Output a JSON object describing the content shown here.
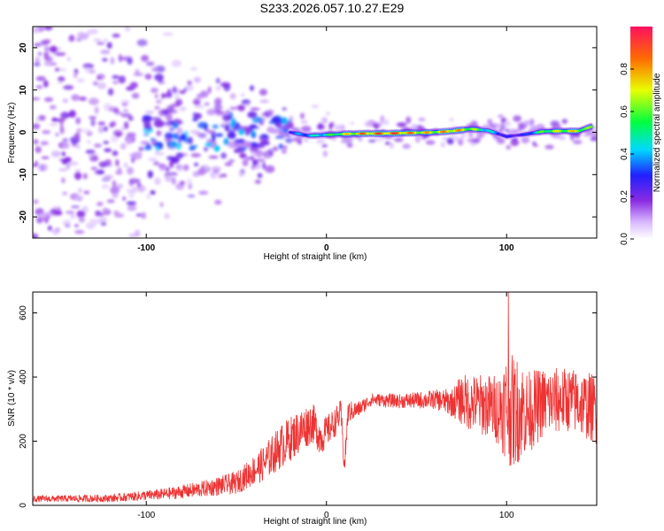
{
  "figure_title": "S233.2026.057.10.27.E29",
  "colors": {
    "snr_line": "#ee3333",
    "axis": "#000000"
  },
  "chart_data": [
    {
      "type": "heatmap",
      "name": "spectrogram",
      "title": "S233.2026.057.10.27.E29",
      "xlabel": "Height of straight line (km)",
      "ylabel": "Frequency (Hz)",
      "xlim": [
        -163,
        150
      ],
      "ylim": [
        -25,
        25
      ],
      "xticks": [
        "-100",
        "0",
        "100"
      ],
      "xtick_values": [
        -100,
        0,
        100
      ],
      "yticks": [
        "-20",
        "-10",
        "0",
        "10",
        "20"
      ],
      "ytick_values": [
        -20,
        -10,
        0,
        10,
        20
      ],
      "colorbar": {
        "label": "Normalized spectral amplitude",
        "range": [
          0,
          1
        ],
        "ticks": [
          "0.0",
          "0.2",
          "0.4",
          "0.6",
          "0.8"
        ],
        "tick_values": [
          0,
          0.2,
          0.4,
          0.6,
          0.8
        ]
      },
      "ridge": [
        {
          "x": -20,
          "f": 0.0,
          "amp": 0.35
        },
        {
          "x": -10,
          "f": -0.8,
          "amp": 0.45
        },
        {
          "x": 0,
          "f": -0.6,
          "amp": 0.55
        },
        {
          "x": 10,
          "f": -0.4,
          "amp": 0.75
        },
        {
          "x": 20,
          "f": -0.3,
          "amp": 0.9
        },
        {
          "x": 30,
          "f": -0.3,
          "amp": 0.95
        },
        {
          "x": 40,
          "f": -0.2,
          "amp": 0.95
        },
        {
          "x": 50,
          "f": -0.1,
          "amp": 0.85
        },
        {
          "x": 60,
          "f": 0.0,
          "amp": 0.8
        },
        {
          "x": 70,
          "f": 0.3,
          "amp": 0.9
        },
        {
          "x": 80,
          "f": 0.8,
          "amp": 0.75
        },
        {
          "x": 90,
          "f": 0.4,
          "amp": 0.5
        },
        {
          "x": 100,
          "f": -1.0,
          "amp": 0.3
        },
        {
          "x": 110,
          "f": -0.5,
          "amp": 0.3
        },
        {
          "x": 120,
          "f": 0.2,
          "amp": 0.65
        },
        {
          "x": 130,
          "f": 0.3,
          "amp": 0.75
        },
        {
          "x": 140,
          "f": 0.3,
          "amp": 0.8
        },
        {
          "x": 148,
          "f": 1.5,
          "amp": 0.6
        }
      ]
    },
    {
      "type": "line",
      "name": "snr",
      "xlabel": "Height of straight line (km)",
      "ylabel": "SNR (10 * v/v)",
      "xlim": [
        -163,
        150
      ],
      "ylim": [
        0,
        665
      ],
      "xticks": [
        "-100",
        "0",
        "100"
      ],
      "xtick_values": [
        -100,
        0,
        100
      ],
      "yticks": [
        "0",
        "200",
        "400",
        "600"
      ],
      "ytick_values": [
        0,
        200,
        400,
        600
      ],
      "series": [
        {
          "name": "SNR",
          "envelope": {
            "x": [
              -163,
              -120,
              -90,
              -70,
              -50,
              -35,
              -25,
              -15,
              -8,
              -3,
              0,
              5,
              8,
              10,
              12,
              18,
              25,
              40,
              60,
              70,
              75,
              80,
              90,
              95,
              100,
              103,
              108,
              112,
              120,
              135,
              150
            ],
            "mean": [
              20,
              22,
              35,
              50,
              70,
              130,
              185,
              230,
              260,
              210,
              230,
              260,
              290,
              120,
              290,
              300,
              330,
              325,
              330,
              320,
              330,
              320,
              310,
              300,
              310,
              290,
              300,
              290,
              320,
              330,
              300
            ],
            "spread": [
              10,
              12,
              18,
              25,
              35,
              55,
              70,
              70,
              65,
              55,
              50,
              45,
              40,
              40,
              35,
              25,
              20,
              22,
              30,
              45,
              80,
              90,
              100,
              110,
              170,
              180,
              160,
              130,
              110,
              100,
              110
            ]
          },
          "peak": {
            "x": 101,
            "value": 665
          }
        }
      ]
    }
  ]
}
